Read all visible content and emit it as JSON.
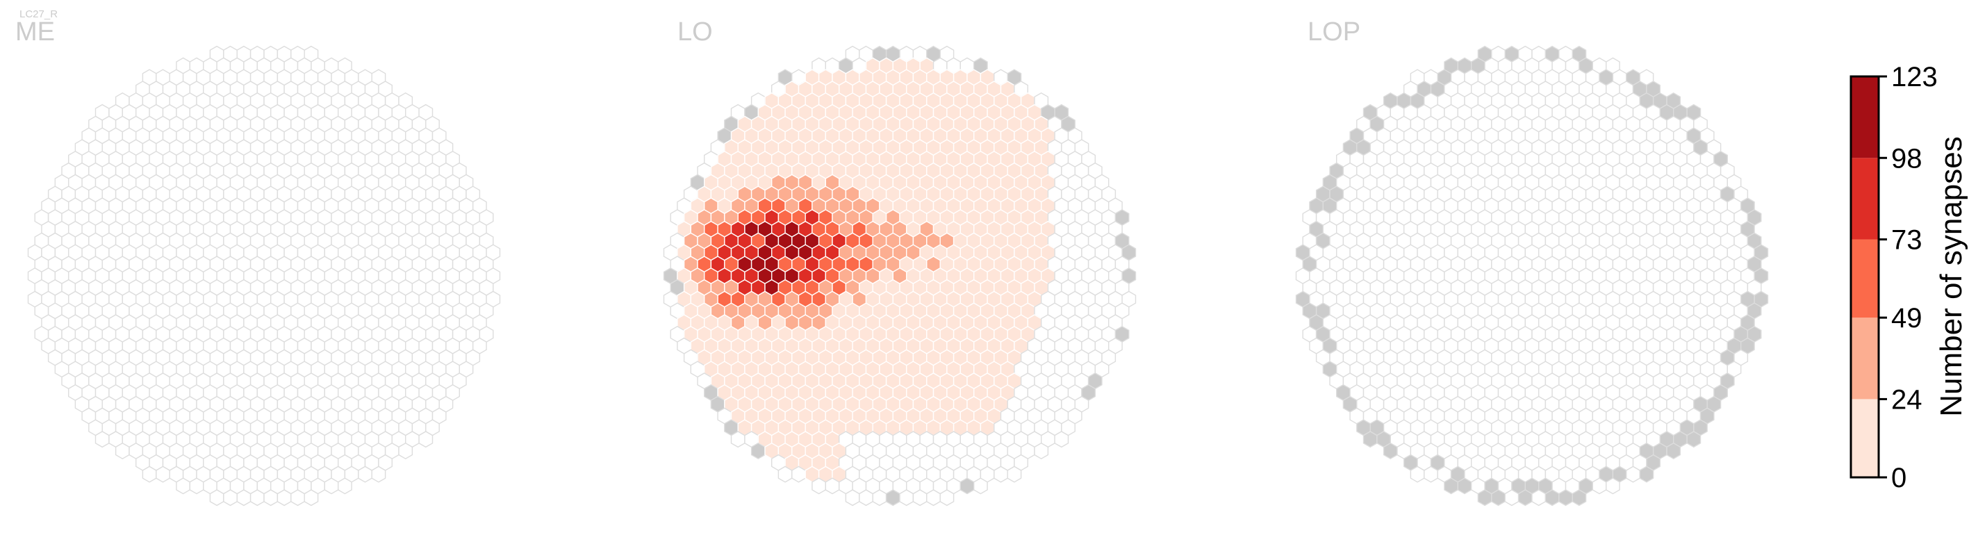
{
  "cell_type_label": "LC27_R",
  "chart_data": {
    "type": "heatmap",
    "layout": "hexagonal grid, three neuropil panels",
    "panels": [
      {
        "title": "ME",
        "synapse_summary": "no synapses in any column"
      },
      {
        "title": "LO",
        "synapse_summary": "hotspot in upper-left quadrant, max ~123; most of left/central area low (0-24); empty columns around rim"
      },
      {
        "title": "LOP",
        "synapse_summary": "no synapses; rim columns shown grey"
      }
    ],
    "colorbar": {
      "label": "Number of synapses",
      "ticks": [
        0,
        24,
        49,
        73,
        98,
        123
      ],
      "range": [
        0,
        123
      ],
      "bins": [
        {
          "range": [
            0,
            24
          ],
          "color": "#fee5d9"
        },
        {
          "range": [
            24,
            49
          ],
          "color": "#fcae91"
        },
        {
          "range": [
            49,
            73
          ],
          "color": "#fb6a4a"
        },
        {
          "range": [
            73,
            98
          ],
          "color": "#de2d26"
        },
        {
          "range": [
            98,
            123
          ],
          "color": "#a50f15"
        }
      ]
    },
    "colors": {
      "empty_column_fill": "#ffffff",
      "empty_column_stroke": "#dddddd",
      "rim_column_fill": "#cccccc"
    }
  }
}
